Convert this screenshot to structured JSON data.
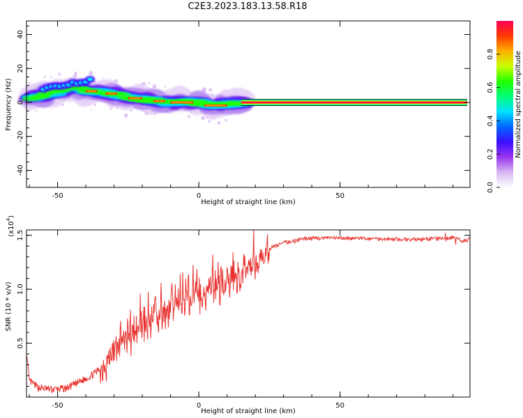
{
  "title": "C2E3.2023.183.13.58.R18",
  "chart_data": [
    {
      "type": "heatmap",
      "name": "spectrogram",
      "xlabel": "Height of straight line (km)",
      "ylabel": "Frequency (Hz)",
      "xlim": [
        -61,
        96
      ],
      "ylim": [
        -50,
        48
      ],
      "xticks": [
        -50,
        0,
        50
      ],
      "yticks": [
        -40,
        -20,
        0,
        20,
        40
      ],
      "grid": false,
      "colorbar": {
        "label": "Normalized spectral amplitude",
        "range": [
          0,
          1
        ],
        "ticks": [
          "0.0",
          "0.2",
          "0.4",
          "0.6",
          "0.8"
        ],
        "colormap": [
          "#ffffff",
          "#d7b7f2",
          "#9a35f0",
          "#3a10ff",
          "#0066ff",
          "#00e0ff",
          "#00ff7a",
          "#22ff00",
          "#c8ff00",
          "#ffb000",
          "#ff3a00",
          "#ff0055"
        ]
      },
      "ridge": [
        {
          "x": -60,
          "f": 2
        },
        {
          "x": -55,
          "f": 4
        },
        {
          "x": -50,
          "f": 7
        },
        {
          "x": -45,
          "f": 9
        },
        {
          "x": -40,
          "f": 7
        },
        {
          "x": -35,
          "f": 6
        },
        {
          "x": -30,
          "f": 5
        },
        {
          "x": -25,
          "f": 3
        },
        {
          "x": -20,
          "f": 2
        },
        {
          "x": -15,
          "f": 1
        },
        {
          "x": -10,
          "f": 0
        },
        {
          "x": 0,
          "f": 0
        },
        {
          "x": 5,
          "f": -2
        },
        {
          "x": 10,
          "f": -1
        },
        {
          "x": 15,
          "f": 0
        },
        {
          "x": 95,
          "f": 0
        }
      ]
    },
    {
      "type": "line",
      "name": "snr",
      "xlabel": "Height of straight line (km)",
      "ylabel": "SNR (10 * v/v)",
      "y_multiplier": "(x10",
      "y_multiplier_exp": "4",
      "y_multiplier_close": ")",
      "xlim": [
        -61,
        96
      ],
      "ylim": [
        0,
        15500
      ],
      "xticks": [
        -50,
        0,
        50
      ],
      "yticks": [
        5000,
        10000,
        15000
      ],
      "yticklabels": [
        "0.5",
        "1.0",
        "1.5"
      ],
      "color": "#e8312d",
      "grid": false,
      "envelope": [
        {
          "x": -61,
          "y": 4000
        },
        {
          "x": -60,
          "y": 1500
        },
        {
          "x": -57,
          "y": 900
        },
        {
          "x": -52,
          "y": 700
        },
        {
          "x": -47,
          "y": 800
        },
        {
          "x": -43,
          "y": 1300
        },
        {
          "x": -38,
          "y": 2000
        },
        {
          "x": -34,
          "y": 2800
        },
        {
          "x": -30,
          "y": 4300
        },
        {
          "x": -26,
          "y": 5800
        },
        {
          "x": -22,
          "y": 6400
        },
        {
          "x": -18,
          "y": 7000
        },
        {
          "x": -14,
          "y": 7800
        },
        {
          "x": -10,
          "y": 8300
        },
        {
          "x": -6,
          "y": 8700
        },
        {
          "x": -2,
          "y": 9300
        },
        {
          "x": 2,
          "y": 9800
        },
        {
          "x": 6,
          "y": 10200
        },
        {
          "x": 10,
          "y": 10600
        },
        {
          "x": 14,
          "y": 11000
        },
        {
          "x": 18,
          "y": 11900
        },
        {
          "x": 22,
          "y": 13000
        },
        {
          "x": 26,
          "y": 13900
        },
        {
          "x": 30,
          "y": 14300
        },
        {
          "x": 34,
          "y": 14500
        },
        {
          "x": 38,
          "y": 14700
        },
        {
          "x": 45,
          "y": 14750
        },
        {
          "x": 60,
          "y": 14700
        },
        {
          "x": 75,
          "y": 14600
        },
        {
          "x": 85,
          "y": 14700
        },
        {
          "x": 90,
          "y": 14750
        },
        {
          "x": 93,
          "y": 14500
        },
        {
          "x": 96,
          "y": 14600
        }
      ]
    }
  ]
}
